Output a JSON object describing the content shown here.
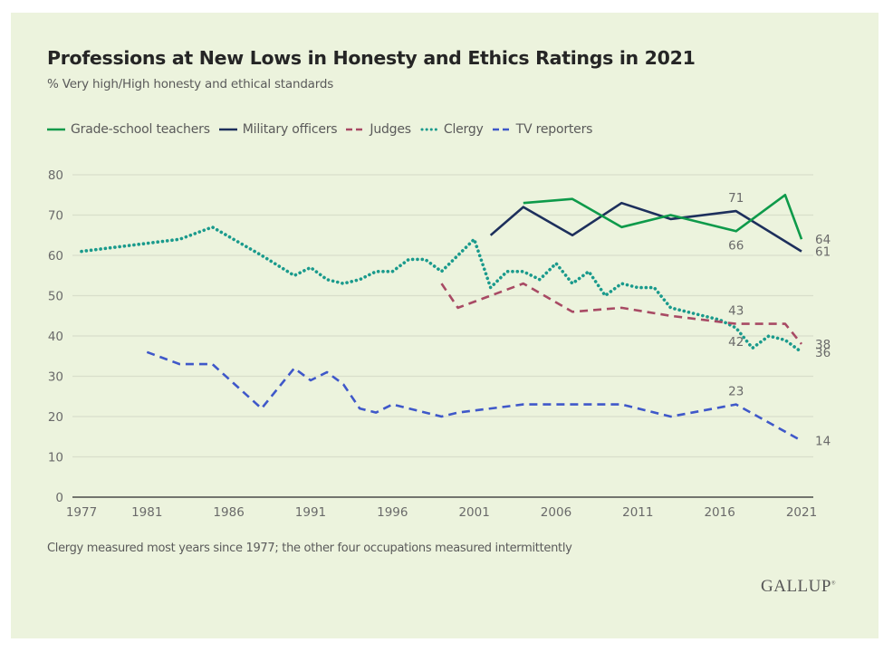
{
  "chart_data": {
    "type": "line",
    "title": "Professions at New Lows in Honesty and Ethics Ratings in 2021",
    "subtitle": "% Very high/High honesty and ethical standards",
    "xlabel": "",
    "ylabel": "",
    "xlim": [
      1977,
      2021
    ],
    "ylim": [
      0,
      80
    ],
    "x_ticks": [
      1977,
      1981,
      1986,
      1991,
      1996,
      2001,
      2006,
      2011,
      2016,
      2021
    ],
    "y_ticks": [
      0,
      10,
      20,
      30,
      40,
      50,
      60,
      70,
      80
    ],
    "grid": true,
    "legend_position": "top-left",
    "series": [
      {
        "name": "Grade-school teachers",
        "color": "#0e9a4a",
        "style": "solid",
        "points": [
          [
            2004,
            73
          ],
          [
            2007,
            74
          ],
          [
            2010,
            67
          ],
          [
            2013,
            70
          ],
          [
            2017,
            66
          ],
          [
            2020,
            75
          ],
          [
            2021,
            64
          ]
        ]
      },
      {
        "name": "Military officers",
        "color": "#1d2f5c",
        "style": "solid",
        "points": [
          [
            2002,
            65
          ],
          [
            2004,
            72
          ],
          [
            2007,
            65
          ],
          [
            2010,
            73
          ],
          [
            2013,
            69
          ],
          [
            2017,
            71
          ],
          [
            2021,
            61
          ]
        ]
      },
      {
        "name": "Judges",
        "color": "#a84a64",
        "style": "dashed",
        "points": [
          [
            1999,
            53
          ],
          [
            2000,
            47
          ],
          [
            2002,
            50
          ],
          [
            2004,
            53
          ],
          [
            2007,
            46
          ],
          [
            2010,
            47
          ],
          [
            2013,
            45
          ],
          [
            2017,
            43
          ],
          [
            2020,
            43
          ],
          [
            2021,
            38
          ]
        ]
      },
      {
        "name": "Clergy",
        "color": "#1a9a8c",
        "style": "dotted",
        "points": [
          [
            1977,
            61
          ],
          [
            1981,
            63
          ],
          [
            1983,
            64
          ],
          [
            1985,
            67
          ],
          [
            1988,
            60
          ],
          [
            1990,
            55
          ],
          [
            1991,
            57
          ],
          [
            1992,
            54
          ],
          [
            1993,
            53
          ],
          [
            1994,
            54
          ],
          [
            1995,
            56
          ],
          [
            1996,
            56
          ],
          [
            1997,
            59
          ],
          [
            1998,
            59
          ],
          [
            1999,
            56
          ],
          [
            2000,
            60
          ],
          [
            2001,
            64
          ],
          [
            2002,
            52
          ],
          [
            2003,
            56
          ],
          [
            2004,
            56
          ],
          [
            2005,
            54
          ],
          [
            2006,
            58
          ],
          [
            2007,
            53
          ],
          [
            2008,
            56
          ],
          [
            2009,
            50
          ],
          [
            2010,
            53
          ],
          [
            2011,
            52
          ],
          [
            2012,
            52
          ],
          [
            2013,
            47
          ],
          [
            2016,
            44
          ],
          [
            2017,
            42
          ],
          [
            2018,
            37
          ],
          [
            2019,
            40
          ],
          [
            2020,
            39
          ],
          [
            2021,
            36
          ]
        ]
      },
      {
        "name": "TV reporters",
        "color": "#3f58c9",
        "style": "dashed",
        "points": [
          [
            1981,
            36
          ],
          [
            1983,
            33
          ],
          [
            1985,
            33
          ],
          [
            1988,
            22
          ],
          [
            1990,
            32
          ],
          [
            1991,
            29
          ],
          [
            1992,
            31
          ],
          [
            1993,
            28
          ],
          [
            1994,
            22
          ],
          [
            1995,
            21
          ],
          [
            1996,
            23
          ],
          [
            1999,
            20
          ],
          [
            2000,
            21
          ],
          [
            2004,
            23
          ],
          [
            2006,
            23
          ],
          [
            2010,
            23
          ],
          [
            2013,
            20
          ],
          [
            2017,
            23
          ],
          [
            2021,
            14
          ]
        ]
      }
    ],
    "annotations": [
      {
        "series": "Military officers",
        "x": 2017,
        "y": 71,
        "text": "71",
        "pos": "above"
      },
      {
        "series": "Grade-school teachers",
        "x": 2017,
        "y": 66,
        "text": "66",
        "pos": "below"
      },
      {
        "series": "Grade-school teachers",
        "x": 2021,
        "y": 64,
        "text": "64",
        "pos": "right"
      },
      {
        "series": "Military officers",
        "x": 2021,
        "y": 61,
        "text": "61",
        "pos": "right"
      },
      {
        "series": "Judges",
        "x": 2017,
        "y": 43,
        "text": "43",
        "pos": "above"
      },
      {
        "series": "Clergy",
        "x": 2017,
        "y": 42,
        "text": "42",
        "pos": "below"
      },
      {
        "series": "Judges",
        "x": 2021,
        "y": 38,
        "text": "38",
        "pos": "right"
      },
      {
        "series": "Clergy",
        "x": 2021,
        "y": 36,
        "text": "36",
        "pos": "right"
      },
      {
        "series": "TV reporters",
        "x": 2017,
        "y": 23,
        "text": "23",
        "pos": "above"
      },
      {
        "series": "TV reporters",
        "x": 2021,
        "y": 14,
        "text": "14",
        "pos": "right"
      }
    ],
    "footnote": "Clergy measured most years since 1977; the other four occupations measured intermittently",
    "source": "GALLUP"
  },
  "colors": {
    "background": "#ecf3dd",
    "grid": "#d8dfcb",
    "axis": "#4a4a4a"
  }
}
